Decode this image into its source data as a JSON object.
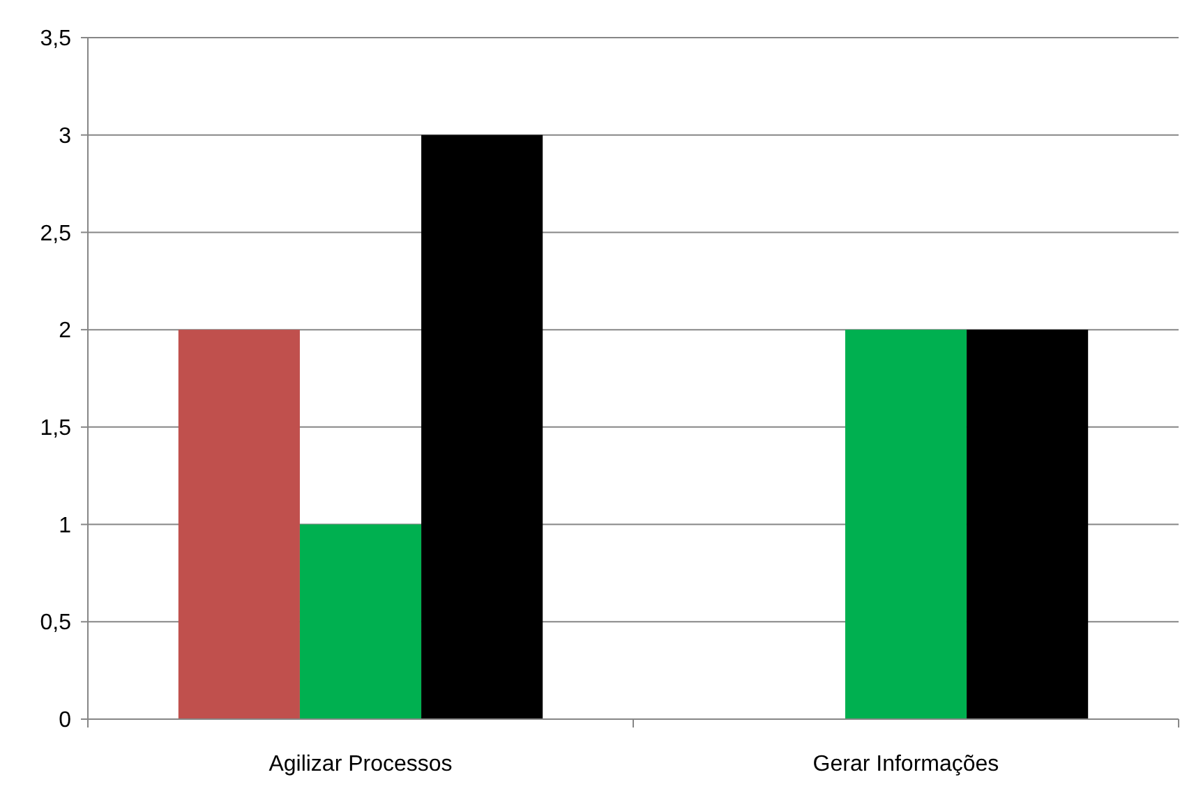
{
  "chart_data": {
    "type": "bar",
    "categories": [
      "Agilizar Processos",
      "Gerar Informações"
    ],
    "series": [
      {
        "color": "#c0504d",
        "values": [
          2,
          0
        ]
      },
      {
        "color": "#00b050",
        "values": [
          1,
          2
        ]
      },
      {
        "color": "#000000",
        "values": [
          3,
          2
        ]
      }
    ],
    "ylim": [
      0,
      3.5
    ],
    "yticks": [
      0,
      {
        "value": 0.5,
        "label": "0,5"
      },
      1,
      {
        "value": 1.5,
        "label": "1,5"
      },
      2,
      {
        "value": 2.5,
        "label": "2,5"
      },
      3,
      {
        "value": 3.5,
        "label": "3,5"
      }
    ],
    "grid": "y"
  }
}
